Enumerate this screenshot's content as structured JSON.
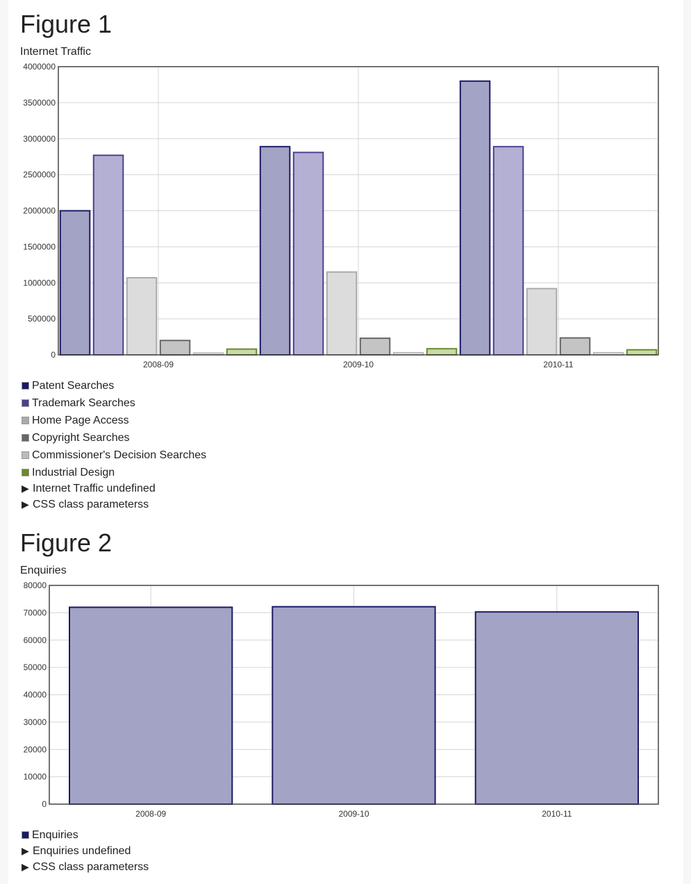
{
  "figures": [
    {
      "heading": "Figure 1",
      "caption": "Internet Traffic",
      "details": [
        "Internet Traffic undefined",
        "CSS class parameterss"
      ],
      "chart_data": {
        "type": "bar",
        "title": "Internet Traffic",
        "categories": [
          "2008-09",
          "2009-10",
          "2010-11"
        ],
        "ylim": [
          0,
          4000000
        ],
        "yticks": [
          0,
          500000,
          1000000,
          1500000,
          2000000,
          2500000,
          3000000,
          3500000,
          4000000
        ],
        "grid": true,
        "legend_position": "bottom",
        "series": [
          {
            "name": "Patent Searches",
            "values": [
              2000000,
              2890000,
              3800000
            ],
            "fill": "#a3a3c5",
            "stroke": "#1a1a66",
            "swatch": "#1a1a66"
          },
          {
            "name": "Trademark Searches",
            "values": [
              2770000,
              2810000,
              2890000
            ],
            "fill": "#b4b0d3",
            "stroke": "#4a4090",
            "swatch": "#4a4090"
          },
          {
            "name": "Home Page Access",
            "values": [
              1070000,
              1150000,
              920000
            ],
            "fill": "#dcdcdc",
            "stroke": "#aaaaaa",
            "swatch": "#aaaaaa"
          },
          {
            "name": "Copyright Searches",
            "values": [
              200000,
              230000,
              235000
            ],
            "fill": "#c4c4c4",
            "stroke": "#666666",
            "swatch": "#666666"
          },
          {
            "name": "Commissioner's Decision Searches",
            "values": [
              25000,
              30000,
              30000
            ],
            "fill": "#eeeeee",
            "stroke": "#bbbbbb",
            "swatch": "#bbbbbb"
          },
          {
            "name": "Industrial Design",
            "values": [
              80000,
              85000,
              70000
            ],
            "fill": "#c9d9a8",
            "stroke": "#6a8a2a",
            "swatch": "#6a8a2a"
          }
        ]
      }
    },
    {
      "heading": "Figure 2",
      "caption": "Enquiries",
      "details": [
        "Enquiries undefined",
        "CSS class parameterss"
      ],
      "chart_data": {
        "type": "bar",
        "title": "Enquiries",
        "categories": [
          "2008-09",
          "2009-10",
          "2010-11"
        ],
        "ylim": [
          0,
          80000
        ],
        "yticks": [
          0,
          10000,
          20000,
          30000,
          40000,
          50000,
          60000,
          70000,
          80000
        ],
        "grid": true,
        "legend_position": "bottom",
        "series": [
          {
            "name": "Enquiries",
            "values": [
              72000,
              72200,
              70300
            ],
            "fill": "#a3a3c5",
            "stroke": "#1a1a66",
            "swatch": "#1a1a66"
          }
        ]
      }
    }
  ]
}
